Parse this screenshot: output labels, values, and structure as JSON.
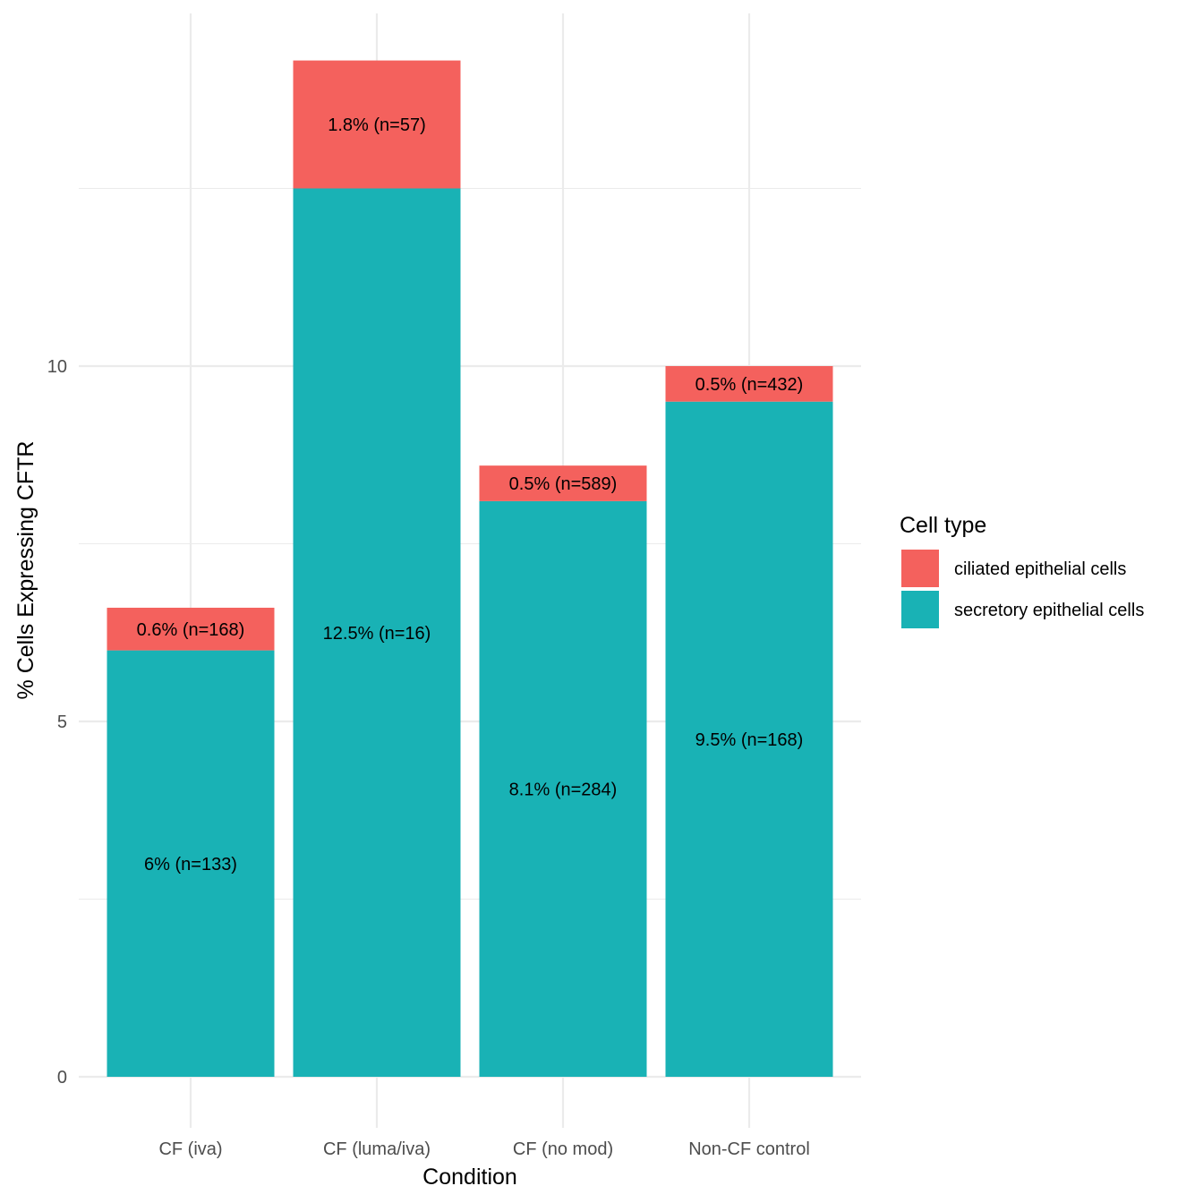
{
  "chart_data": {
    "type": "bar",
    "stacked": true,
    "title": "",
    "xlabel": "Condition",
    "ylabel": "% Cells Expressing CFTR",
    "ylim": [
      0,
      14.3
    ],
    "yticks": [
      0,
      5,
      10
    ],
    "yticks_minor": [
      2.5,
      7.5,
      12.5
    ],
    "categories": [
      "CF (iva)",
      "CF (luma/iva)",
      "CF (no mod)",
      "Non-CF control"
    ],
    "series": [
      {
        "name": "secretory epithelial cells",
        "color": "#19B2B5",
        "values": [
          6.0,
          12.5,
          8.1,
          9.5
        ],
        "labels": [
          "6% (n=133)",
          "12.5% (n=16)",
          "8.1% (n=284)",
          "9.5% (n=168)"
        ]
      },
      {
        "name": "ciliated epithelial cells",
        "color": "#F4615D",
        "values": [
          0.6,
          1.8,
          0.5,
          0.5
        ],
        "labels": [
          "0.6% (n=168)",
          "1.8% (n=57)",
          "0.5% (n=589)",
          "0.5% (n=432)"
        ]
      }
    ],
    "legend": {
      "title": "Cell type",
      "position": "right",
      "entries": [
        {
          "label": "ciliated epithelial cells",
          "color": "#F4615D"
        },
        {
          "label": "secretory epithelial cells",
          "color": "#19B2B5"
        }
      ]
    },
    "grid": true
  }
}
